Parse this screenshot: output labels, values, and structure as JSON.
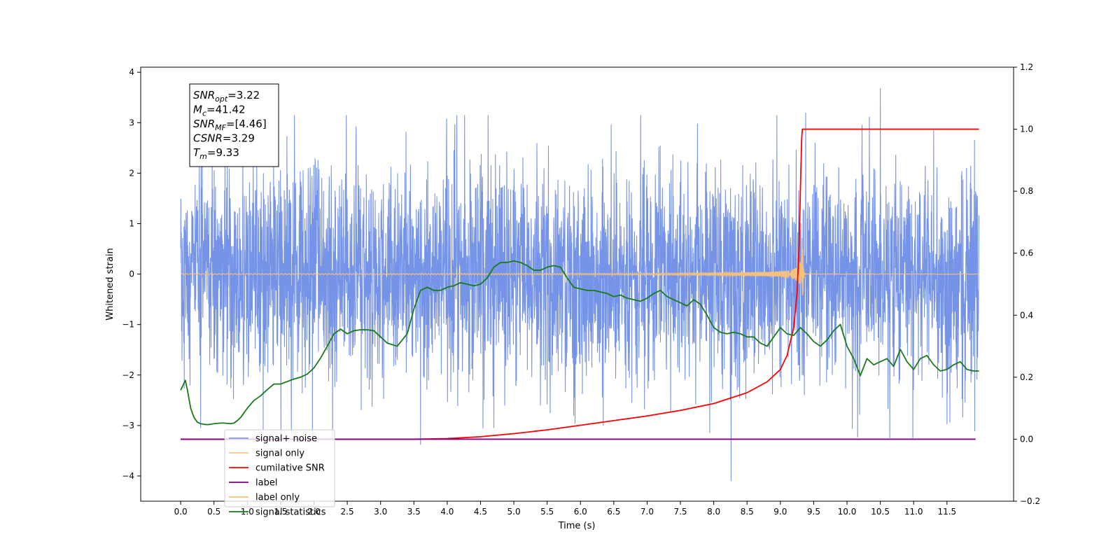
{
  "chart_data": {
    "type": "line",
    "title": "",
    "xlabel": "Time (s)",
    "ylabel_left": "Whitened strain",
    "ylabel_right": "",
    "xlim": [
      -0.6,
      12.5
    ],
    "ylim_left": [
      -4.5,
      4.1
    ],
    "ylim_right": [
      -0.2,
      1.2
    ],
    "x_ticks": [
      0.0,
      0.5,
      1.0,
      1.5,
      2.0,
      2.5,
      3.0,
      3.5,
      4.0,
      4.5,
      5.0,
      5.5,
      6.0,
      6.5,
      7.0,
      7.5,
      8.0,
      8.5,
      9.0,
      9.5,
      10.0,
      10.5,
      11.0,
      11.5
    ],
    "x_tick_labels": [
      "0.0",
      "0.5",
      "1.0",
      "1.5",
      "2.0",
      "2.5",
      "3.0",
      "3.5",
      "4.0",
      "4.5",
      "5.0",
      "5.5",
      "6.0",
      "6.5",
      "7.0",
      "7.5",
      "8.0",
      "8.5",
      "9.0",
      "9.5",
      "10.0",
      "10.5",
      "11.0",
      "11.5"
    ],
    "y_left_ticks": [
      -4,
      -3,
      -2,
      -1,
      0,
      1,
      2,
      3,
      4
    ],
    "y_left_tick_labels": [
      "−4",
      "−3",
      "−2",
      "−1",
      "0",
      "1",
      "2",
      "3",
      "4"
    ],
    "y_right_ticks": [
      -0.2,
      0.0,
      0.2,
      0.4,
      0.6,
      0.8,
      1.0,
      1.2
    ],
    "y_right_tick_labels": [
      "−0.2",
      "0.0",
      "0.2",
      "0.4",
      "0.6",
      "0.8",
      "1.0",
      "1.2"
    ],
    "grid": false,
    "legend_position": "lower-left",
    "annotation_lines": [
      "SNR_opt=3.22",
      "M_c=41.42",
      "SNR_MF=[4.46]",
      "CSNR=3.29",
      "T_m=9.33"
    ],
    "annotation": [
      {
        "symbol": "SNR",
        "sub": "opt",
        "value": "=3.22"
      },
      {
        "symbol": "M",
        "sub": "c",
        "value": "=41.42"
      },
      {
        "symbol": "SNR",
        "sub": "MF",
        "value": "=[4.46]"
      },
      {
        "symbol": "CSNR",
        "sub": "",
        "value": "=3.29"
      },
      {
        "symbol": "T",
        "sub": "m",
        "value": "=9.33"
      }
    ],
    "series": [
      {
        "name": "signal+ noise",
        "axis": "left",
        "color": "#6f8ee6",
        "kind": "noise",
        "x_range": [
          0.0,
          11.98
        ],
        "noise_std": 1.05,
        "spikes": [
          [
            10.5,
            3.68
          ],
          [
            8.26,
            -4.1
          ],
          [
            9.38,
            3.2
          ],
          [
            3.6,
            -3.38
          ],
          [
            7.94,
            -3.15
          ],
          [
            2.28,
            -3.3
          ],
          [
            0.3,
            -3.05
          ],
          [
            11.3,
            2.85
          ]
        ]
      },
      {
        "name": "signal only",
        "axis": "left",
        "color": "#f5c07a",
        "kind": "chirp",
        "x_range": [
          0.0,
          11.98
        ],
        "merger_time": 9.33,
        "peak_amplitude": 0.85
      },
      {
        "name": "cumilative SNR",
        "axis": "right",
        "color": "#ff0000",
        "x": [
          0.0,
          3.5,
          4.0,
          4.5,
          5.0,
          5.5,
          6.0,
          6.5,
          7.0,
          7.5,
          8.0,
          8.5,
          8.8,
          9.0,
          9.1,
          9.2,
          9.25,
          9.28,
          9.3,
          9.32,
          9.33,
          9.5,
          10.0,
          11.0,
          11.98
        ],
        "y": [
          0.0,
          0.0,
          0.002,
          0.008,
          0.018,
          0.03,
          0.045,
          0.06,
          0.075,
          0.093,
          0.115,
          0.15,
          0.185,
          0.225,
          0.27,
          0.36,
          0.47,
          0.62,
          0.8,
          0.97,
          1.0,
          1.0,
          1.0,
          1.0,
          1.0
        ]
      },
      {
        "name": "label",
        "axis": "right",
        "color": "#800080",
        "x": [
          0.0,
          11.93
        ],
        "y": [
          0.0,
          0.0
        ]
      },
      {
        "name": "label only",
        "axis": "right",
        "color": "#f5c07a",
        "legend_only": true,
        "x": [],
        "y": []
      },
      {
        "name": "signal statistics",
        "axis": "right",
        "color": "#1a7a1a",
        "x": [
          0.0,
          0.07,
          0.1,
          0.15,
          0.2,
          0.25,
          0.3,
          0.35,
          0.4,
          0.45,
          0.5,
          0.55,
          0.6,
          0.65,
          0.7,
          0.75,
          0.8,
          0.85,
          0.9,
          0.95,
          1.0,
          1.1,
          1.2,
          1.3,
          1.4,
          1.5,
          1.6,
          1.7,
          1.8,
          1.9,
          2.0,
          2.1,
          2.2,
          2.3,
          2.4,
          2.5,
          2.6,
          2.7,
          2.8,
          2.9,
          3.0,
          3.1,
          3.25,
          3.4,
          3.5,
          3.6,
          3.7,
          3.8,
          3.9,
          4.0,
          4.1,
          4.2,
          4.3,
          4.4,
          4.5,
          4.6,
          4.7,
          4.8,
          4.9,
          5.0,
          5.1,
          5.2,
          5.3,
          5.4,
          5.5,
          5.6,
          5.7,
          5.8,
          5.9,
          6.0,
          6.1,
          6.2,
          6.3,
          6.4,
          6.5,
          6.6,
          6.7,
          6.8,
          6.9,
          7.0,
          7.1,
          7.2,
          7.3,
          7.4,
          7.5,
          7.6,
          7.7,
          7.8,
          7.9,
          8.0,
          8.1,
          8.2,
          8.3,
          8.4,
          8.5,
          8.6,
          8.7,
          8.8,
          8.9,
          9.0,
          9.1,
          9.2,
          9.3,
          9.4,
          9.5,
          9.6,
          9.7,
          9.8,
          9.9,
          10.0,
          10.1,
          10.2,
          10.3,
          10.4,
          10.5,
          10.6,
          10.7,
          10.8,
          10.9,
          11.0,
          11.1,
          11.2,
          11.3,
          11.4,
          11.5,
          11.6,
          11.7,
          11.8,
          11.9,
          11.98
        ],
        "y": [
          0.158,
          0.19,
          0.16,
          0.1,
          0.07,
          0.055,
          0.05,
          0.048,
          0.047,
          0.048,
          0.05,
          0.051,
          0.052,
          0.052,
          0.051,
          0.05,
          0.052,
          0.06,
          0.07,
          0.085,
          0.1,
          0.125,
          0.14,
          0.16,
          0.178,
          0.178,
          0.186,
          0.194,
          0.2,
          0.21,
          0.23,
          0.262,
          0.3,
          0.34,
          0.355,
          0.34,
          0.35,
          0.353,
          0.353,
          0.35,
          0.33,
          0.31,
          0.3,
          0.34,
          0.42,
          0.48,
          0.49,
          0.48,
          0.48,
          0.49,
          0.495,
          0.505,
          0.5,
          0.495,
          0.5,
          0.52,
          0.555,
          0.57,
          0.57,
          0.575,
          0.57,
          0.56,
          0.545,
          0.545,
          0.555,
          0.56,
          0.555,
          0.52,
          0.49,
          0.485,
          0.48,
          0.48,
          0.475,
          0.47,
          0.46,
          0.465,
          0.455,
          0.45,
          0.445,
          0.455,
          0.47,
          0.48,
          0.46,
          0.45,
          0.44,
          0.43,
          0.45,
          0.435,
          0.4,
          0.36,
          0.345,
          0.34,
          0.345,
          0.34,
          0.33,
          0.33,
          0.31,
          0.3,
          0.33,
          0.36,
          0.34,
          0.335,
          0.36,
          0.34,
          0.315,
          0.3,
          0.32,
          0.35,
          0.37,
          0.3,
          0.26,
          0.205,
          0.26,
          0.24,
          0.25,
          0.26,
          0.235,
          0.29,
          0.25,
          0.225,
          0.26,
          0.27,
          0.24,
          0.22,
          0.225,
          0.24,
          0.25,
          0.225,
          0.22,
          0.22
        ]
      }
    ]
  }
}
